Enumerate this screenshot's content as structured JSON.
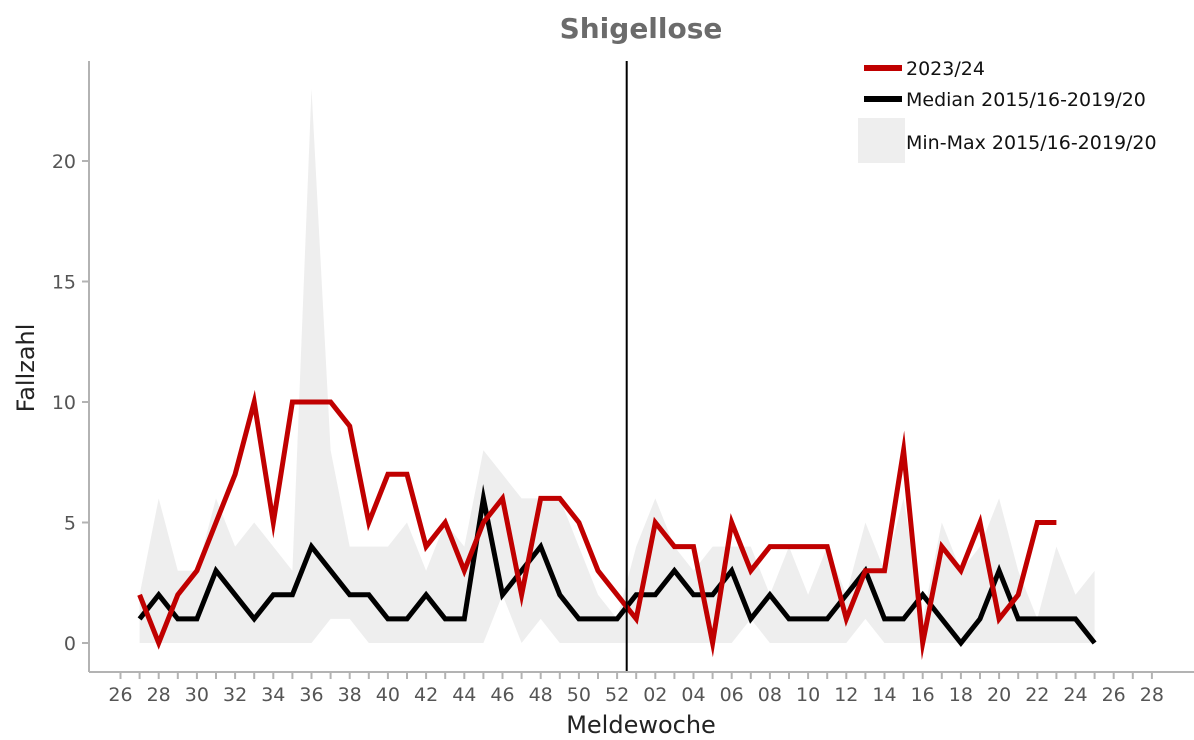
{
  "chart_data": {
    "type": "line",
    "title": "Shigellose",
    "xlabel": "Meldewoche",
    "ylabel": "Fallzahl",
    "ylim": [
      0,
      23
    ],
    "yticks": [
      0,
      5,
      10,
      15,
      20
    ],
    "x_tick_labels": [
      "26",
      "28",
      "30",
      "32",
      "34",
      "36",
      "38",
      "40",
      "42",
      "44",
      "46",
      "48",
      "50",
      "52",
      "02",
      "04",
      "06",
      "08",
      "10",
      "12",
      "14",
      "16",
      "18",
      "20",
      "22",
      "24",
      "26",
      "28"
    ],
    "week_sequence": [
      "26",
      "27",
      "28",
      "29",
      "30",
      "31",
      "32",
      "33",
      "34",
      "35",
      "36",
      "37",
      "38",
      "39",
      "40",
      "41",
      "42",
      "43",
      "44",
      "45",
      "46",
      "47",
      "48",
      "49",
      "50",
      "51",
      "52",
      "01",
      "02",
      "03",
      "04",
      "05",
      "06",
      "07",
      "08",
      "09",
      "10",
      "11",
      "12",
      "13",
      "14",
      "15",
      "16",
      "17",
      "18",
      "19",
      "20",
      "21",
      "22",
      "23",
      "24",
      "25",
      "26",
      "27",
      "28"
    ],
    "year_boundary_after_week": "52",
    "legend": [
      {
        "label": "2023/24",
        "color": "#c00000",
        "kind": "line"
      },
      {
        "label": "Median 2015/16-2019/20",
        "color": "#000000",
        "kind": "line"
      },
      {
        "label": "Min-Max 2015/16-2019/20",
        "color": "#eeeeee",
        "kind": "area"
      }
    ],
    "legend_position": "top-right",
    "grid": false,
    "series": [
      {
        "name": "2023/24",
        "color": "#c00000",
        "start_week": "27",
        "values": [
          2,
          0,
          2,
          3,
          5,
          7,
          10,
          5,
          10,
          10,
          10,
          9,
          5,
          7,
          7,
          4,
          5,
          3,
          5,
          6,
          2,
          6,
          6,
          5,
          3,
          2,
          1,
          5,
          4,
          4,
          0,
          5,
          3,
          4,
          4,
          4,
          4,
          1,
          3,
          3,
          8,
          0,
          4,
          3,
          5,
          1,
          2,
          5,
          5
        ]
      },
      {
        "name": "Median 2015/16-2019/20",
        "color": "#000000",
        "start_week": "27",
        "values": [
          1,
          2,
          1,
          1,
          3,
          2,
          1,
          2,
          2,
          4,
          3,
          2,
          2,
          1,
          1,
          2,
          1,
          1,
          6,
          2,
          3,
          4,
          2,
          1,
          1,
          1,
          2,
          2,
          3,
          2,
          2,
          3,
          1,
          2,
          1,
          1,
          1,
          2,
          3,
          1,
          1,
          2,
          1,
          0,
          1,
          3,
          1,
          1,
          1,
          1,
          0
        ]
      }
    ],
    "range": {
      "name": "Min-Max 2015/16-2019/20",
      "color": "#eeeeee",
      "start_week": "27",
      "min": [
        0,
        0,
        0,
        0,
        0,
        0,
        0,
        0,
        0,
        0,
        1,
        1,
        0,
        0,
        0,
        0,
        0,
        0,
        0,
        2,
        0,
        1,
        0,
        0,
        0,
        0,
        0,
        0,
        0,
        0,
        0,
        0,
        1,
        0,
        0,
        0,
        0,
        0,
        1,
        0,
        0,
        0,
        0,
        0,
        0,
        0,
        0,
        0,
        0,
        0,
        0
      ],
      "max": [
        2,
        6,
        3,
        3,
        6,
        4,
        5,
        4,
        3,
        23,
        8,
        4,
        4,
        4,
        5,
        3,
        5,
        4,
        8,
        7,
        6,
        6,
        6,
        4,
        2,
        1,
        4,
        6,
        4,
        3,
        4,
        4,
        4,
        2,
        4,
        2,
        4,
        2,
        5,
        3,
        6,
        1,
        5,
        3,
        4,
        6,
        3,
        1,
        4,
        2,
        3
      ]
    }
  }
}
